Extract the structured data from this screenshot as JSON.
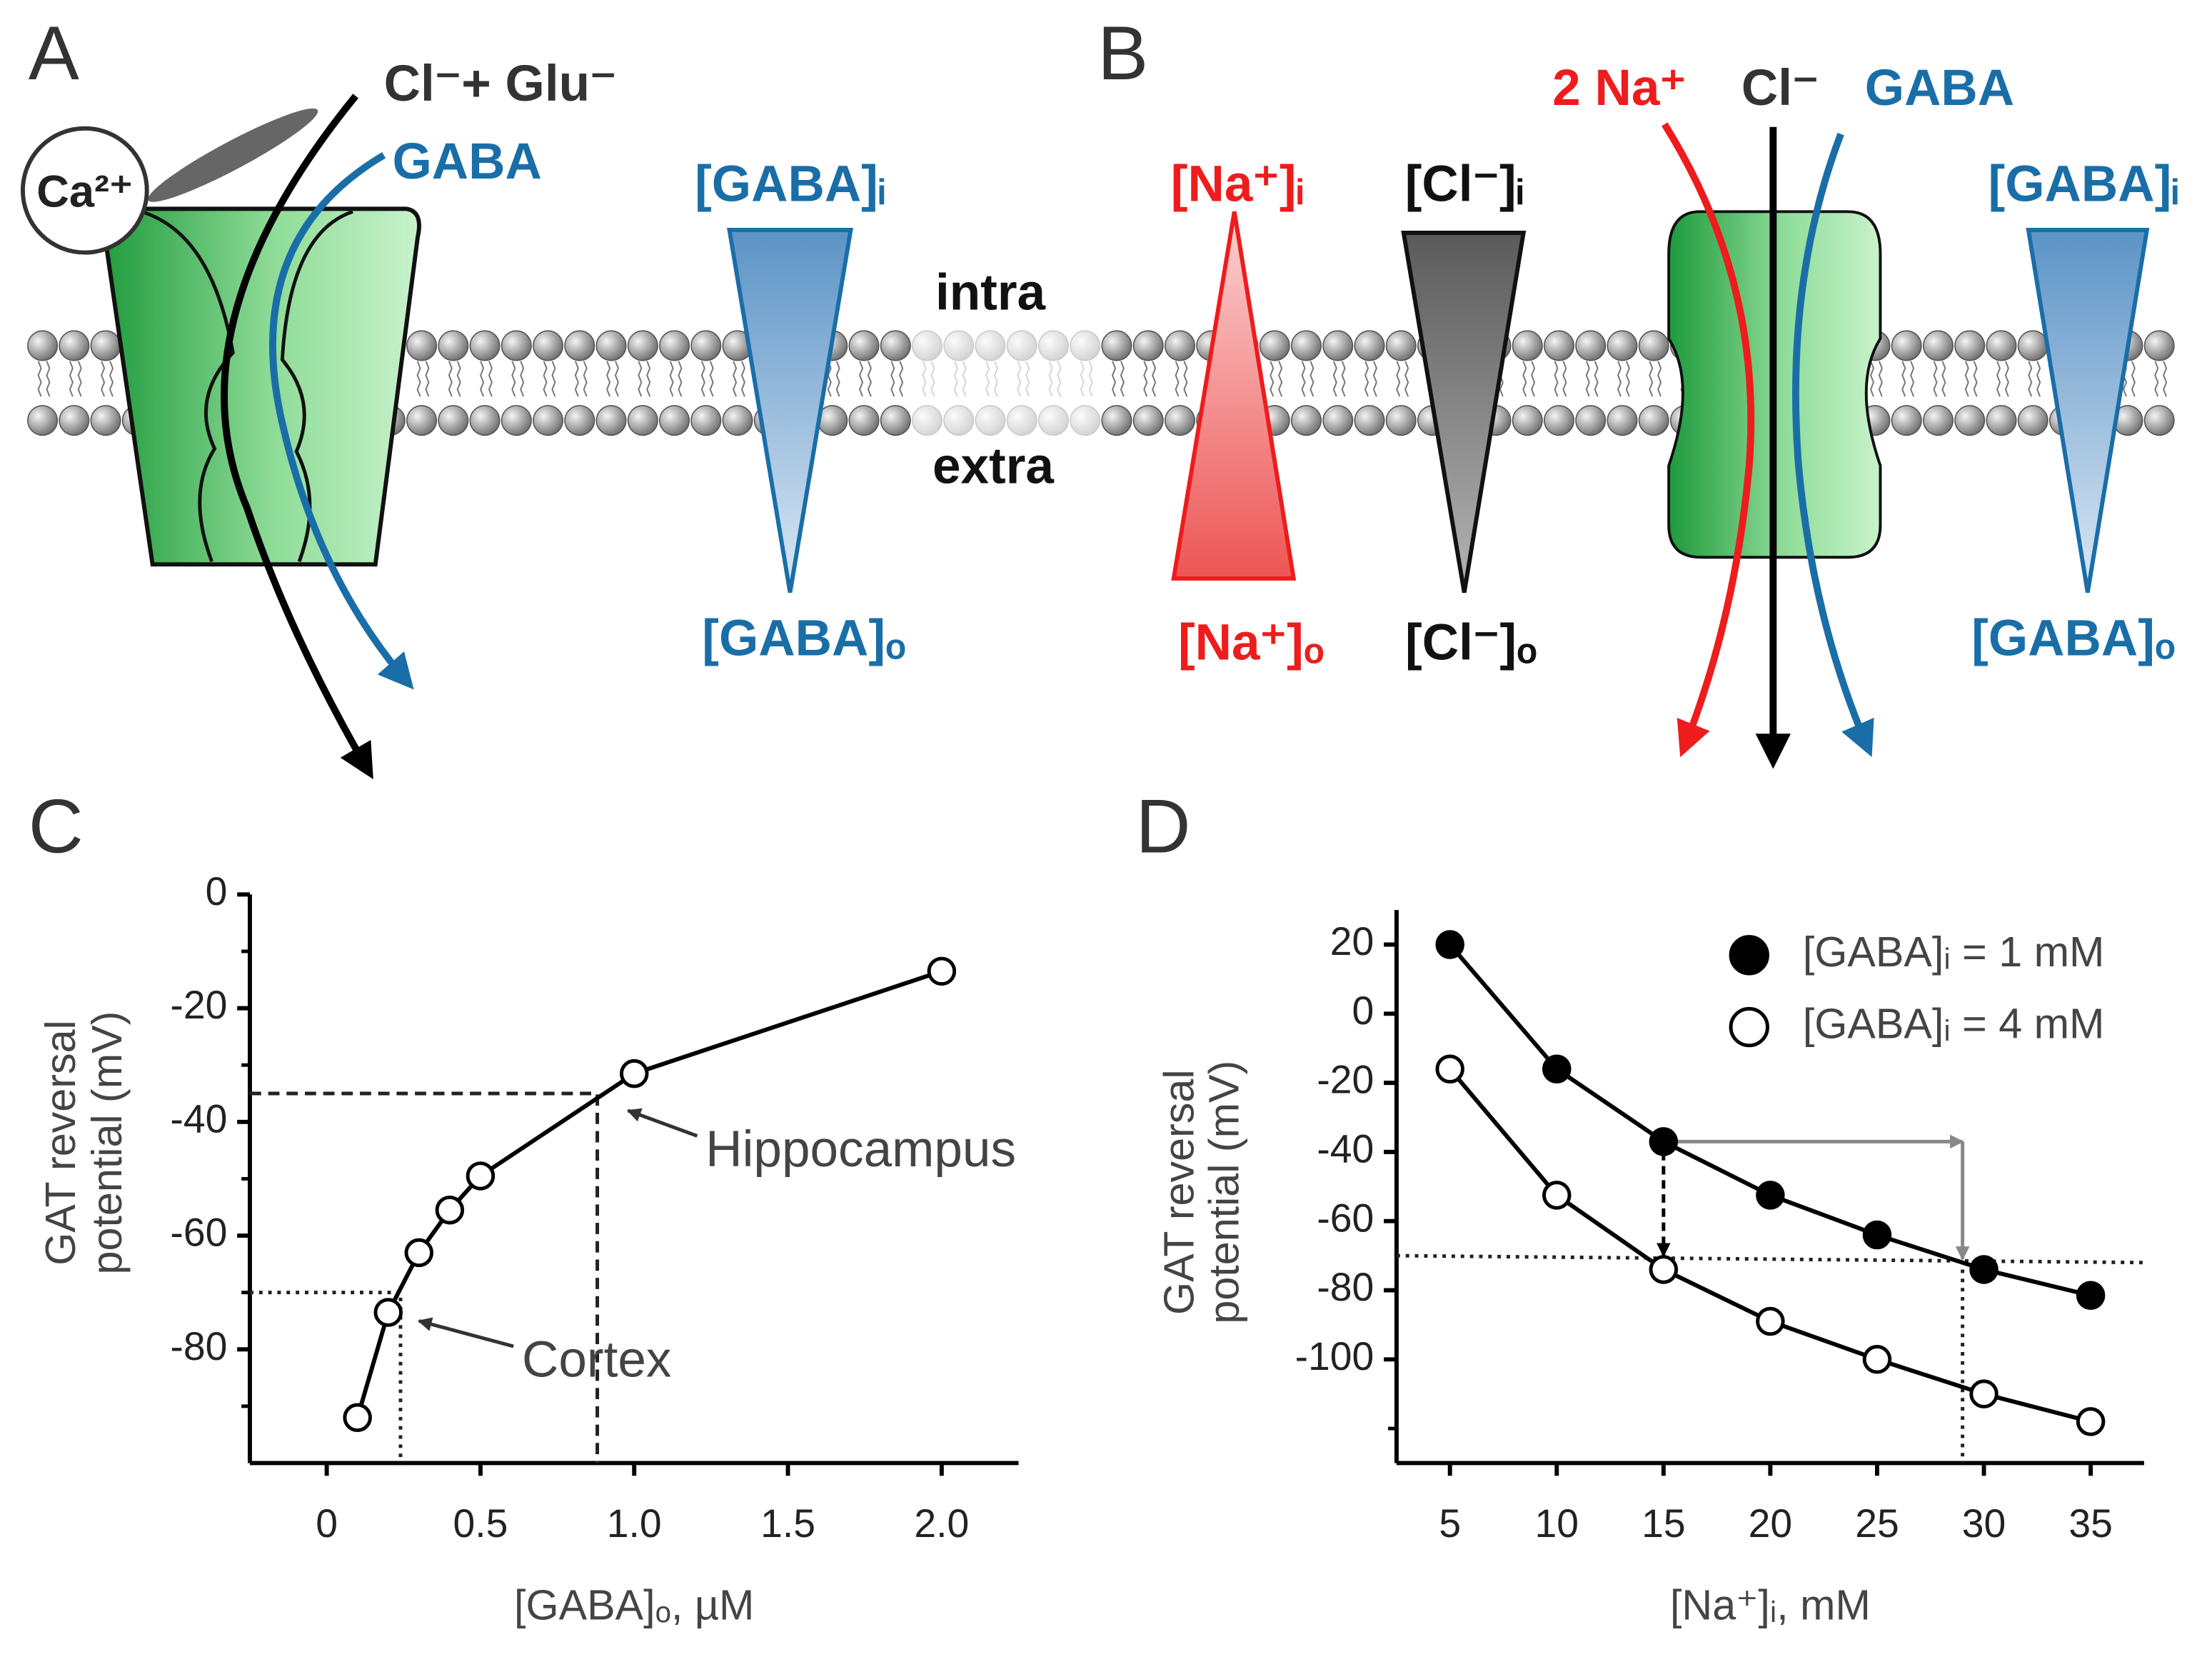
{
  "panels": {
    "A": {
      "label": "A",
      "arrow_black": "Cl⁻+ Glu⁻",
      "arrow_blue": "GABA",
      "ion": "Ca²⁺",
      "gradient_top": "[GABA]ᵢ",
      "gradient_bottom": "[GABA]ₒ",
      "intra": "intra",
      "extra": "extra"
    },
    "B": {
      "label": "B",
      "arrow_red": "2 Na⁺",
      "arrow_black": "Cl⁻",
      "arrow_blue": "GABA",
      "na_top": "[Na⁺]ᵢ",
      "na_bottom": "[Na⁺]ₒ",
      "cl_top": "[Cl⁻]ᵢ",
      "cl_bottom": "[Cl⁻]ₒ",
      "gaba_top": "[GABA]ᵢ",
      "gaba_bottom": "[GABA]ₒ"
    },
    "C": {
      "label": "C"
    },
    "D": {
      "label": "D"
    }
  },
  "chart_data": [
    {
      "type": "line",
      "xlabel": "[GABA]ₒ, µM",
      "ylabel": [
        "GAT reversal",
        "potential (mV)"
      ],
      "xlim": [
        -0.25,
        2.25
      ],
      "ylim": [
        -100,
        0
      ],
      "xticks": [
        0,
        0.5,
        {
          "value": 1,
          "label": "1.0"
        },
        1.5,
        {
          "value": 2,
          "label": "2.0"
        }
      ],
      "yticks": [
        0,
        -20,
        -40,
        -60,
        -80
      ],
      "yticks_minor": [
        -10,
        -30,
        -50,
        -70,
        -90
      ],
      "series": [
        {
          "color": "#000000",
          "marker": "open",
          "x": [
            0.1,
            0.2,
            0.3,
            0.4,
            0.5,
            1.0,
            2.0
          ],
          "values": [
            -92,
            -73.5,
            -63,
            -55.5,
            -49.5,
            -31.5,
            -13.5
          ]
        }
      ],
      "guides": [
        {
          "style": "dashed",
          "x": [
            -0.25,
            0.88,
            0.88
          ],
          "y": [
            -35,
            -35,
            -100
          ]
        },
        {
          "style": "dotted",
          "x": [
            -0.25,
            0.24,
            0.24
          ],
          "y": [
            -70,
            -70,
            -100
          ]
        }
      ],
      "annotations": [
        {
          "text": "Hippocampus",
          "x": 0.98,
          "y": -38
        },
        {
          "text": "Cortex",
          "x": 0.3,
          "y": -75
        }
      ]
    },
    {
      "type": "line",
      "xlabel": "[Na⁺]ᵢ, mM",
      "ylabel": [
        "GAT reversal",
        "potential (mV)"
      ],
      "xlim": [
        2.5,
        37.5
      ],
      "ylim": [
        -130,
        30
      ],
      "xticks": [
        5,
        10,
        15,
        20,
        25,
        30,
        35
      ],
      "yticks": [
        20,
        0,
        -20,
        -40,
        -60,
        -80,
        -100
      ],
      "yticks_minor": [
        -120
      ],
      "legend": "upper right",
      "series": [
        {
          "name": "[GABA]ᵢ = 1 mM",
          "color": "#000000",
          "marker": "filled",
          "x": [
            5,
            10,
            15,
            20,
            25,
            30,
            35
          ],
          "values": [
            20,
            -16,
            -37,
            -52.5,
            -64,
            -74,
            -81.5
          ]
        },
        {
          "name": "[GABA]ᵢ = 4 mM",
          "color": "#000000",
          "marker": "open",
          "x": [
            5,
            10,
            15,
            20,
            25,
            30,
            35
          ],
          "values": [
            -16,
            -52.5,
            -74,
            -89,
            -100,
            -110,
            -118
          ]
        }
      ],
      "guides": [
        {
          "style": "dotted",
          "x": [
            2.5,
            37.5
          ],
          "y": [
            -70,
            -72
          ]
        },
        {
          "style": "dotted",
          "x": [
            29,
            29
          ],
          "y": [
            -74,
            -130
          ]
        }
      ],
      "arrows": [
        {
          "style": "dashed",
          "color": "#000000",
          "x": [
            15,
            15
          ],
          "y": [
            -40,
            -70
          ]
        },
        {
          "style": "solid",
          "color": "#888888",
          "x": [
            15,
            29
          ],
          "y": [
            -37,
            -37
          ]
        },
        {
          "style": "solid",
          "color": "#888888",
          "x": [
            29,
            29
          ],
          "y": [
            -37,
            -71
          ]
        }
      ]
    }
  ]
}
